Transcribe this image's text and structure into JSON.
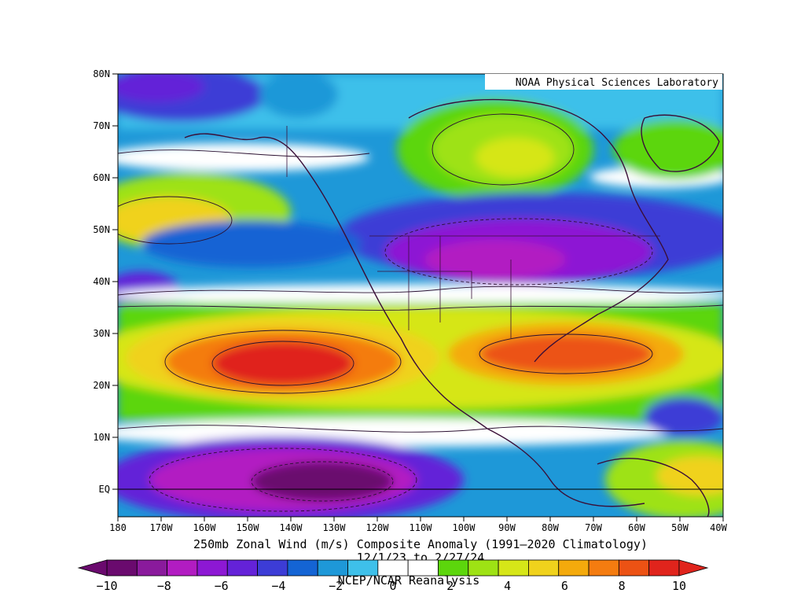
{
  "map": {
    "credit": "NOAA Physical Sciences Laboratory",
    "title": "250mb Zonal Wind (m/s) Composite Anomaly (1991–2020 Climatology)",
    "dates": "12/1/23  to 2/27/24",
    "source": "NCEP/NCAR Reanalysis",
    "lat_labels": [
      "80N",
      "70N",
      "60N",
      "50N",
      "40N",
      "30N",
      "20N",
      "10N",
      "EQ"
    ],
    "lon_labels": [
      "180",
      "170W",
      "160W",
      "150W",
      "140W",
      "130W",
      "120W",
      "110W",
      "100W",
      "90W",
      "80W",
      "70W",
      "60W",
      "50W",
      "40W"
    ],
    "extent": {
      "lon_min": -180,
      "lon_max": -40,
      "lat_min": -5,
      "lat_max": 80
    }
  },
  "colorbar": {
    "labels": [
      "−10",
      "−8",
      "−6",
      "−4",
      "−2",
      "0",
      "2",
      "4",
      "6",
      "8",
      "10"
    ],
    "colors": [
      "#6a0a6e",
      "#8a1a9c",
      "#b21cc2",
      "#8d18d4",
      "#6422d8",
      "#3c3cd6",
      "#1464d4",
      "#1e98d8",
      "#3ec0ea",
      "#ffffff",
      "#ffffff",
      "#5cd60c",
      "#9ee214",
      "#d6e618",
      "#f0d21c",
      "#f4aa0c",
      "#f47c10",
      "#ec5214",
      "#e0241c"
    ]
  }
}
